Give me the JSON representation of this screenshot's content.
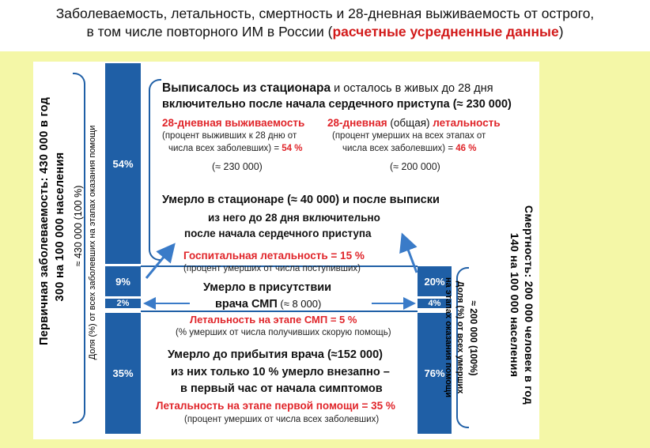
{
  "title": {
    "line1": "Заболеваемость, летальность, смертность и 28-дневная выживаемость от острого,",
    "line2_prefix": "в том числе повторного ИМ в России  (",
    "line2_highlight": "расчетные усредненные данные",
    "line2_suffix": ")"
  },
  "left_axis": {
    "main_line1": "Первичная заболеваемость: 430 000 в год",
    "main_line2": "300  на 100 000 населения",
    "sub_line1": "≈ 430 000 (100 %)",
    "sub_line2": "Доля (%) от всех заболевших на этапах оказания помощи"
  },
  "right_axis": {
    "main_line1": "Смертность:  200 000 человек в год",
    "main_line2": "140  на 100 000 населения",
    "sub_line1": "≈ 200 000 (100%)",
    "sub_line2": "Доля (%) от всех умерших",
    "sub_line3": "на этапах оказания помощи"
  },
  "left_bars": {
    "b54": "54%",
    "b9": "9%",
    "b2": "2%",
    "b35": "35%"
  },
  "right_bars": {
    "b20": "20%",
    "b4": "4%",
    "b76": "76%"
  },
  "discharged": {
    "line1_bold": "Выписалось из стационара",
    "line1_rest": " и осталось в живых до 28 дня",
    "line2": "включительно после начала сердечного приступа  (≈ 230 000)"
  },
  "survival": {
    "title": "28-дневная выживаемость",
    "note1": "(процент выживших к 28 дню от",
    "note2_prefix": "числа всех заболевших) = ",
    "value": "54 %",
    "approx": "(≈ 230 000)"
  },
  "lethality28": {
    "title_a": "28-дневная",
    "title_b": " (общая) ",
    "title_c": "летальность",
    "note1": "(процент умерших на всех этапах от",
    "note2_prefix": "числа всех заболевших) = ",
    "value": "46 %",
    "approx": "(≈ 200 000)"
  },
  "died_hospital": {
    "line1": "Умерло в стационаре (≈ 40 000)  и после выписки",
    "line2": "из него до 28 дня включительно",
    "line3": "после   начала сердечного приступа"
  },
  "hospital_lethality": {
    "label": "Госпитальная летальность",
    "value": " = 15 %",
    "note": "(процент умерших от числа поступивших)"
  },
  "died_ems": {
    "line1": "Умерло в присутствии",
    "line2": "врача СМП",
    "line2_rest": "  (≈ 8 000)"
  },
  "ems_lethality": {
    "label": "Летальность на этапе СМП = 5 %",
    "note": "(% умерших от числа получивших скорую помощь)"
  },
  "died_before": {
    "line1": "Умерло до прибытия врача (≈152 000)",
    "line2": "из них только 10 % умерло  внезапно –",
    "line3": "в первый час от начала симптомов"
  },
  "first_aid_lethality": {
    "label": "Летальность на этапе первой помощи = 35 %",
    "note": "(процент умерших от числа всех заболевших)"
  }
}
